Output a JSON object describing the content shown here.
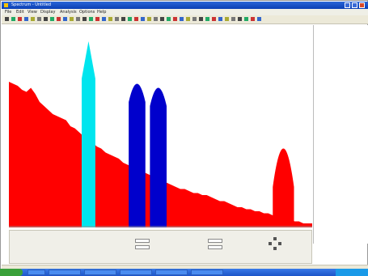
{
  "window": {
    "title": "Spectrum - Untitled"
  },
  "menu": {
    "items": [
      "File",
      "Edit",
      "View",
      "Display",
      "Analysis",
      "Options",
      "Help"
    ]
  },
  "toolbar": {
    "button_count": 40
  },
  "chart_data": {
    "type": "area",
    "series": [
      {
        "color": "#ff0000",
        "values": [
          72,
          71,
          70,
          68,
          67,
          69,
          66,
          62,
          60,
          58,
          56,
          55,
          54,
          53,
          50,
          49,
          47,
          45,
          43,
          42,
          40,
          39,
          37,
          36,
          35,
          34,
          32,
          31,
          30,
          29,
          28,
          27,
          26,
          25,
          24,
          23,
          22,
          21,
          20,
          19,
          19,
          18,
          17,
          17,
          16,
          16,
          15,
          14,
          13,
          13,
          12,
          11,
          10,
          10,
          9,
          9,
          8,
          8,
          7,
          7,
          6,
          6,
          5,
          4,
          4,
          3,
          3,
          2,
          2,
          2
        ]
      },
      {
        "color": "#00e5ee",
        "peak": 92
      },
      {
        "color": "#0000cc",
        "peaks": [
          72,
          70
        ]
      },
      {
        "color": "#ff0000",
        "peak": 48
      }
    ],
    "xlim": [
      0,
      100
    ],
    "ylim": [
      0,
      100
    ]
  },
  "status": {
    "text": ""
  }
}
